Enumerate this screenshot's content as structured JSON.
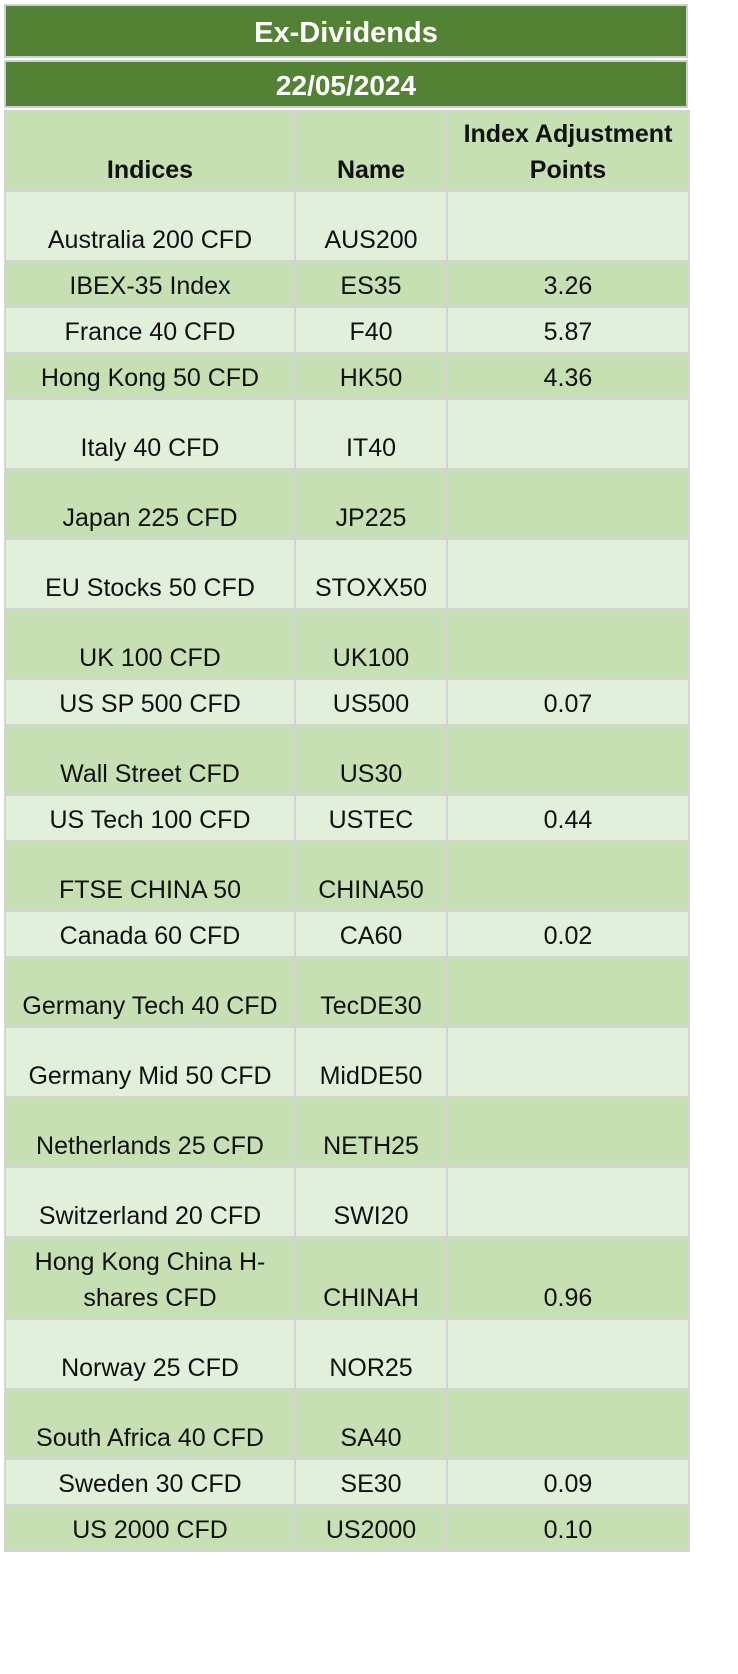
{
  "title": "Ex-Dividends",
  "date": "22/05/2024",
  "headers": {
    "indices": "Indices",
    "name": "Name",
    "points": "Index Adjustment Points"
  },
  "rows": [
    {
      "index": "Australia 200 CFD",
      "name": "AUS200",
      "points": ""
    },
    {
      "index": "IBEX-35 Index",
      "name": "ES35",
      "points": "3.26"
    },
    {
      "index": "France 40 CFD",
      "name": "F40",
      "points": "5.87"
    },
    {
      "index": "Hong Kong 50 CFD",
      "name": "HK50",
      "points": "4.36"
    },
    {
      "index": "Italy 40 CFD",
      "name": "IT40",
      "points": ""
    },
    {
      "index": "Japan 225 CFD",
      "name": "JP225",
      "points": ""
    },
    {
      "index": "EU Stocks 50 CFD",
      "name": "STOXX50",
      "points": ""
    },
    {
      "index": "UK 100 CFD",
      "name": "UK100",
      "points": ""
    },
    {
      "index": "US SP 500 CFD",
      "name": "US500",
      "points": "0.07"
    },
    {
      "index": "Wall Street CFD",
      "name": "US30",
      "points": ""
    },
    {
      "index": "US Tech 100 CFD",
      "name": "USTEC",
      "points": "0.44"
    },
    {
      "index": "FTSE CHINA 50",
      "name": "CHINA50",
      "points": ""
    },
    {
      "index": "Canada 60 CFD",
      "name": "CA60",
      "points": "0.02"
    },
    {
      "index": "Germany Tech 40 CFD",
      "name": "TecDE30",
      "points": ""
    },
    {
      "index": "Germany Mid 50 CFD",
      "name": "MidDE50",
      "points": ""
    },
    {
      "index": "Netherlands 25 CFD",
      "name": "NETH25",
      "points": ""
    },
    {
      "index": "Switzerland 20 CFD",
      "name": "SWI20",
      "points": ""
    },
    {
      "index": "Hong Kong China H-shares CFD",
      "name": "CHINAH",
      "points": "0.96"
    },
    {
      "index": "Norway 25 CFD",
      "name": "NOR25",
      "points": ""
    },
    {
      "index": "South Africa 40 CFD",
      "name": "SA40",
      "points": ""
    },
    {
      "index": "Sweden 30 CFD",
      "name": "SE30",
      "points": "0.09"
    },
    {
      "index": "US 2000 CFD",
      "name": "US2000",
      "points": "0.10"
    }
  ],
  "colors": {
    "banner": "#548235",
    "row_light": "#e2efda",
    "row_dark": "#c6e0b4",
    "border": "#d4d4d4"
  }
}
